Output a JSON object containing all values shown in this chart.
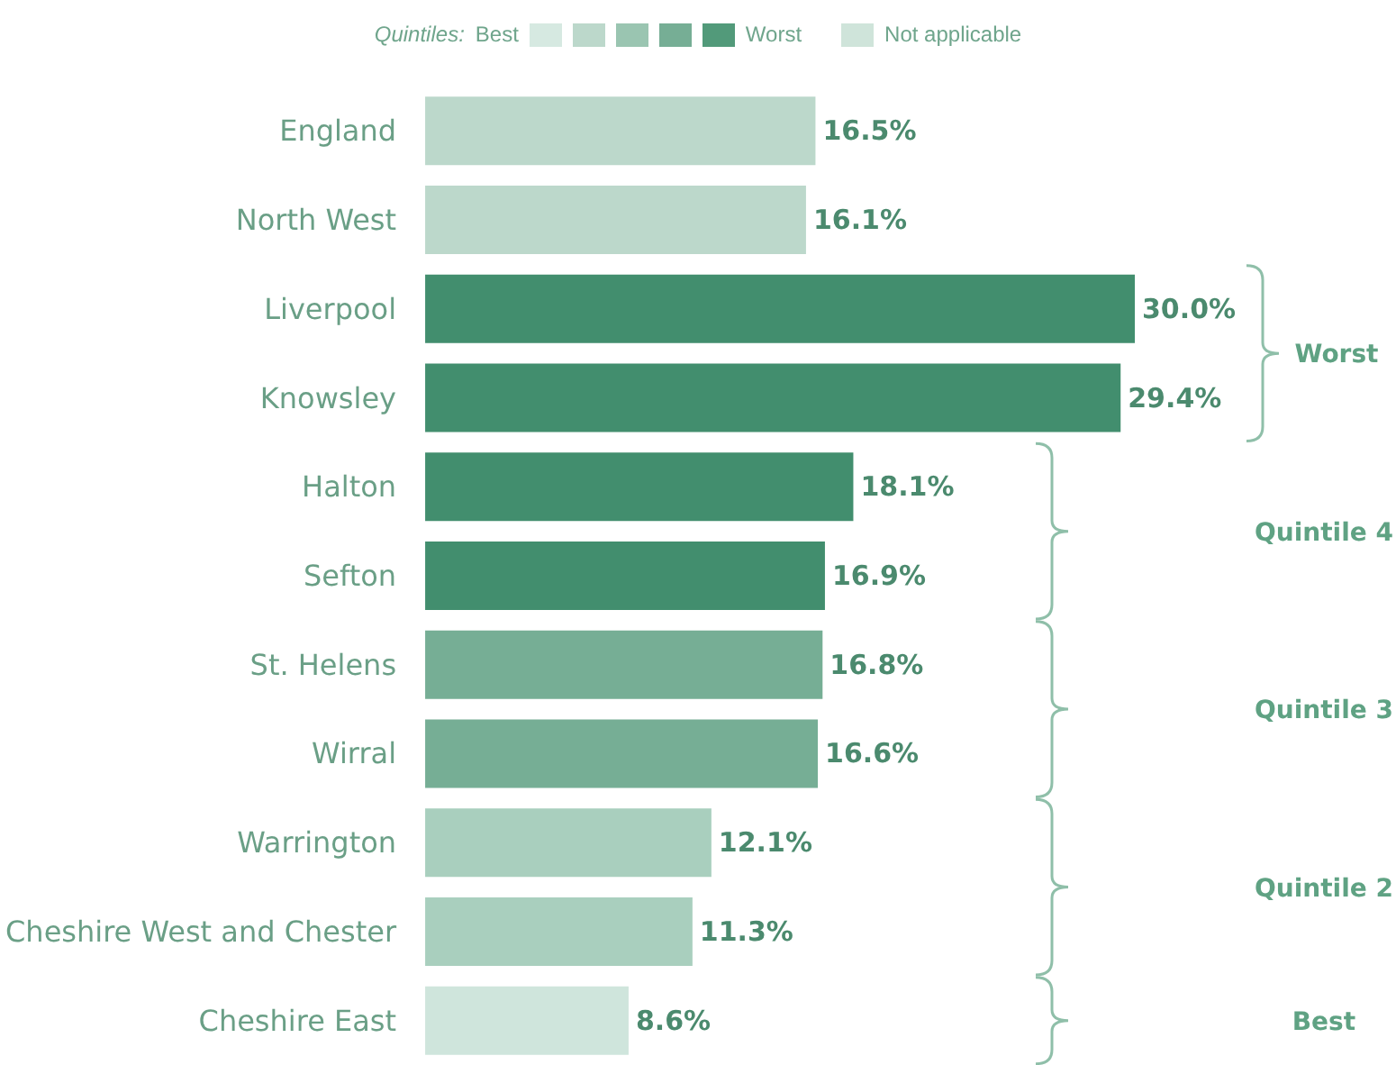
{
  "chart_data": {
    "type": "bar",
    "orientation": "horizontal",
    "legend_title": "Quintiles:",
    "categories": [
      "England",
      "North West",
      "Liverpool",
      "Knowsley",
      "Halton",
      "Sefton",
      "St. Helens",
      "Wirral",
      "Warrington",
      "Cheshire West and Chester",
      "Cheshire East"
    ],
    "values": [
      16.5,
      16.1,
      30.0,
      29.4,
      18.1,
      16.9,
      16.8,
      16.6,
      12.1,
      11.3,
      8.6
    ],
    "value_labels": [
      "16.5%",
      "16.1%",
      "30.0%",
      "29.4%",
      "18.1%",
      "16.9%",
      "16.8%",
      "16.6%",
      "12.1%",
      "11.3%",
      "8.6%"
    ],
    "colors": [
      "#bcd8cb",
      "#bcd8cb",
      "#428e6e",
      "#428e6e",
      "#428e6e",
      "#428e6e",
      "#76ae95",
      "#76ae95",
      "#a9cfbe",
      "#a9cfbe",
      "#cfe5dc"
    ],
    "annotations": [
      "Best",
      "Worst",
      "Not applicable",
      "Worst",
      "Quintile 4",
      "Quintile 3",
      "Quintile 2",
      "Best"
    ],
    "grid": false
  }
}
